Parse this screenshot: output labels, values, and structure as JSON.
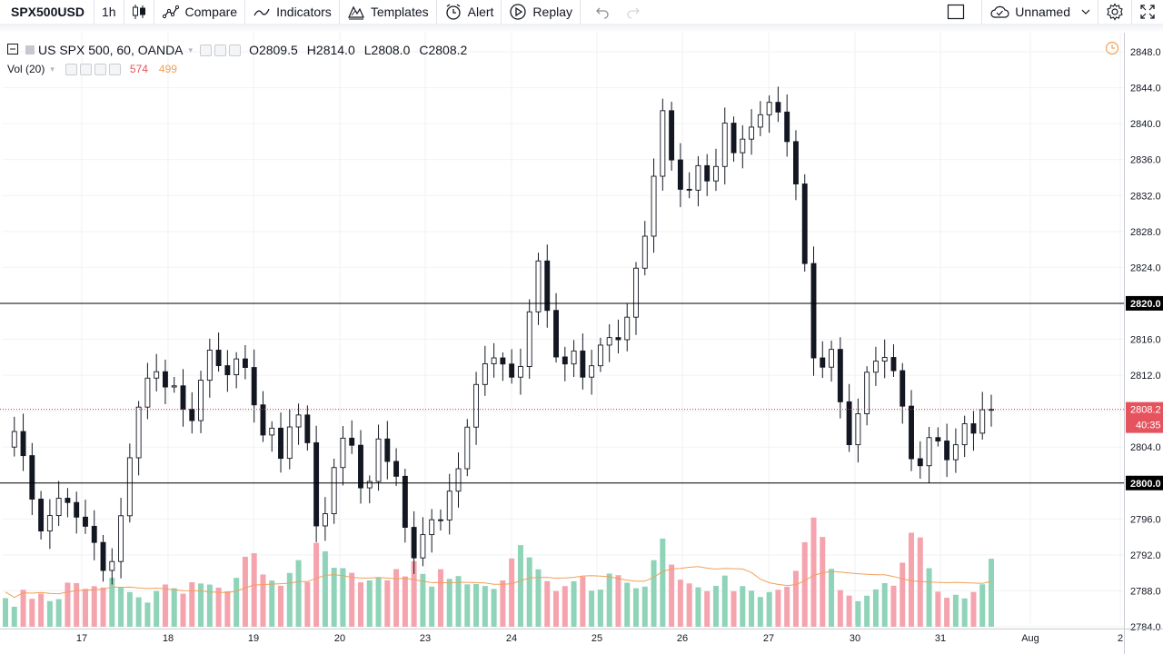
{
  "toolbar": {
    "symbol": "SPX500USD",
    "interval": "1h",
    "compare_label": "Compare",
    "indicators_label": "Indicators",
    "templates_label": "Templates",
    "alert_label": "Alert",
    "replay_label": "Replay",
    "layout_name": "Unnamed"
  },
  "legend": {
    "title": "US SPX 500, 60, OANDA",
    "open_label": "O",
    "open": "2809.5",
    "high_label": "H",
    "high": "2814.0",
    "low_label": "L",
    "low": "2808.0",
    "close_label": "C",
    "close": "2808.2",
    "vol_title": "Vol (20)",
    "vol_value": "574",
    "vol_ma_value": "499"
  },
  "colors": {
    "up": "#131722",
    "down": "#131722",
    "up_fill": "#ffffff",
    "down_fill": "#131722",
    "vol_up": "#8fd3b8",
    "vol_down": "#f5a3ad",
    "vol_ma": "#f0a05a",
    "price_line": "#c83a48",
    "hline": "#000000"
  },
  "chart_data": {
    "type": "candlestick",
    "symbol": "US SPX 500",
    "ylim": [
      2784,
      2848
    ],
    "y_ticks": [
      "2848.0",
      "2844.0",
      "2840.0",
      "2836.0",
      "2832.0",
      "2828.0",
      "2824.0",
      "2820.0",
      "2816.0",
      "2812.0",
      "2808.0",
      "2804.0",
      "2800.0",
      "2796.0",
      "2792.0",
      "2788.0",
      "2784.0"
    ],
    "x_ticks": [
      "17",
      "18",
      "19",
      "20",
      "23",
      "24",
      "25",
      "26",
      "27",
      "30",
      "31",
      "Aug",
      "2"
    ],
    "horizontal_levels": [
      2820.0,
      2800.0
    ],
    "level_labels": [
      "2820.0",
      "2800.0"
    ],
    "last_price": 2808.2,
    "last_price_label": "2808.2",
    "countdown": "40:35",
    "close_path": [
      2804,
      2805,
      2803,
      2798,
      2793,
      2797,
      2800,
      2797,
      2794,
      2796,
      2791,
      2789,
      2795,
      2803,
      2808,
      2811,
      2813,
      2811,
      2810,
      2807,
      2808,
      2814,
      2814,
      2812,
      2814,
      2813,
      2810,
      2806,
      2806,
      2802,
      2807,
      2808,
      2803,
      2793,
      2799,
      2803,
      2805,
      2804,
      2796,
      2805,
      2803,
      2803,
      2795,
      2791,
      2795,
      2796,
      2795,
      2800,
      2803,
      2807,
      2812,
      2815,
      2814,
      2811,
      2812,
      2817,
      2825,
      2820,
      2815,
      2813,
      2814,
      2812,
      2814,
      2815,
      2816,
      2817,
      2820,
      2826,
      2829,
      2844,
      2836,
      2833,
      2833,
      2835,
      2833,
      2836,
      2841,
      2835,
      2839,
      2841,
      2841,
      2842,
      2841,
      2836,
      2828,
      2815,
      2813,
      2815,
      2809,
      2805,
      2808,
      2812,
      2814,
      2815,
      2811,
      2806,
      2801,
      2804,
      2805,
      2803,
      2804,
      2806,
      2805,
      2809,
      2808.2
    ],
    "volume_path": [
      0.3,
      0.2,
      0.4,
      0.25,
      0.35,
      0.2,
      0.3,
      0.5,
      0.3,
      0.4,
      0.3,
      0.45,
      0.35,
      0.3,
      0.25,
      0.2,
      0.3,
      0.35,
      0.3,
      0.25,
      0.4,
      0.3,
      0.35,
      0.25,
      0.3,
      0.5,
      0.6,
      0.4,
      0.35,
      0.3,
      0.4,
      0.5,
      0.3,
      0.7,
      0.5,
      0.4,
      0.45,
      0.35,
      0.3,
      0.4,
      0.3,
      0.45,
      0.35,
      0.5,
      0.4,
      0.3,
      0.45,
      0.35,
      0.4,
      0.3,
      0.35,
      0.3,
      0.3,
      0.45,
      0.7,
      0.6,
      0.5,
      0.4,
      0.3,
      0.35,
      0.4,
      0.45,
      0.3,
      0.35,
      0.55,
      0.45,
      0.4,
      0.35,
      0.45,
      1.0,
      0.7,
      0.5,
      0.45,
      0.4,
      0.35,
      0.4,
      0.5,
      0.3,
      0.4,
      0.3,
      0.25,
      0.35,
      0.3,
      0.4,
      0.6,
      0.95,
      0.8,
      0.5,
      0.3,
      0.25,
      0.2,
      0.25,
      0.3,
      0.35,
      0.3,
      0.6,
      0.8,
      0.55,
      0.3,
      0.2,
      0.25,
      0.2,
      0.25,
      0.3,
      0.5
    ]
  }
}
